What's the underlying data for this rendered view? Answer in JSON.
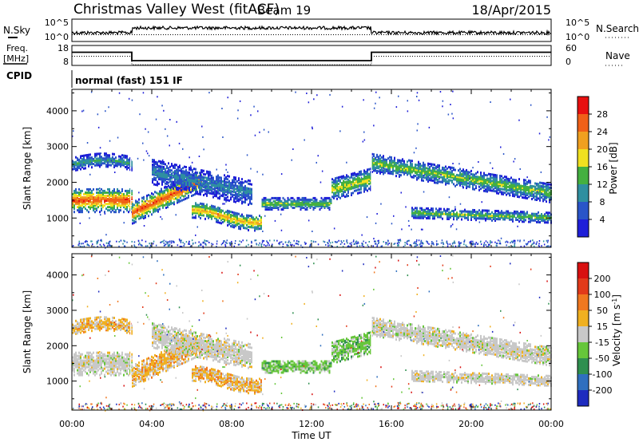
{
  "header": {
    "station": "Christmas Valley West (fitACF)",
    "beam": "Beam 19",
    "date": "18/Apr/2015"
  },
  "strip_labels": {
    "nsky": "N.Sky",
    "freq_line1": "Freq.",
    "freq_line2": "[MHz]",
    "cpid": "CPID",
    "nsearch": "N.Search",
    "nave": "Nave"
  },
  "strip_ticks": {
    "nsky_top": "10^5",
    "nsky_bottom": "10^0",
    "nsearch_top": "10^5",
    "nsearch_bottom": "10^0",
    "freq_top": "18",
    "freq_bottom": "8",
    "nave_top": "60",
    "nave_bottom": "0"
  },
  "cpid_text": "normal (fast) 151 IF",
  "time_ticks": [
    "00:00",
    "04:00",
    "08:00",
    "12:00",
    "16:00",
    "20:00",
    "00:00"
  ],
  "range_ticks": [
    "1000",
    "2000",
    "3000",
    "4000"
  ],
  "xlabel": "Time UT",
  "ylabel": "Slant Range [km]",
  "power_colorbar": {
    "label": "Power [dB]",
    "ticks": [
      "4",
      "8",
      "12",
      "16",
      "20",
      "24",
      "28"
    ],
    "colors": [
      "#1f1fd8",
      "#2a55c8",
      "#2f8fa0",
      "#44b040",
      "#f0e020",
      "#f0a020",
      "#f06018",
      "#e81010"
    ]
  },
  "velocity_colorbar": {
    "label": "Velocity [m s^-1]",
    "ticks": [
      "200",
      "100",
      "50",
      "15",
      "-15",
      "-50",
      "-100",
      "-200"
    ],
    "colors": [
      "#1e2bbf",
      "#2f6fbf",
      "#2f8f4f",
      "#66c63a",
      "#c8c8c8",
      "#f0b020",
      "#f07820",
      "#e23a1a",
      "#d81010"
    ]
  },
  "chart_data": {
    "type": "heatmap",
    "xlabel": "Time UT",
    "ylabel": "Slant Range [km]",
    "xlim_hours": [
      0,
      24
    ],
    "ylim_km": [
      180,
      4600
    ],
    "frequency_steps_mhz": [
      {
        "start_h": 0,
        "end_h": 3,
        "value": 14.6
      },
      {
        "start_h": 3,
        "end_h": 15,
        "value": 10.4
      },
      {
        "start_h": 15,
        "end_h": 24,
        "value": 14.6
      }
    ],
    "power_bands": [
      {
        "name": "strong band",
        "t_start": 0,
        "t_end": 3,
        "range_km": [
          1200,
          1900
        ],
        "peak_db": 28
      },
      {
        "name": "morning band",
        "t_start": 3,
        "t_end": 6.5,
        "range_km": [
          900,
          2200
        ],
        "peak_db": 28
      },
      {
        "name": "arc",
        "t_start": 6,
        "t_end": 9.5,
        "range_km": [
          800,
          1500
        ],
        "peak_db": 24
      },
      {
        "name": "midday band",
        "t_start": 9.5,
        "t_end": 13,
        "range_km": [
          1200,
          1600
        ],
        "peak_db": 16
      },
      {
        "name": "afternoon patch",
        "t_start": 13,
        "t_end": 15,
        "range_km": [
          1500,
          2300
        ],
        "peak_db": 20
      },
      {
        "name": "upper evening band",
        "t_start": 15,
        "t_end": 24,
        "range_km": [
          1800,
          2800
        ],
        "peak_db": 16
      },
      {
        "name": "lower evening band",
        "t_start": 17,
        "t_end": 24,
        "range_km": [
          900,
          1300
        ],
        "peak_db": 16
      }
    ]
  }
}
